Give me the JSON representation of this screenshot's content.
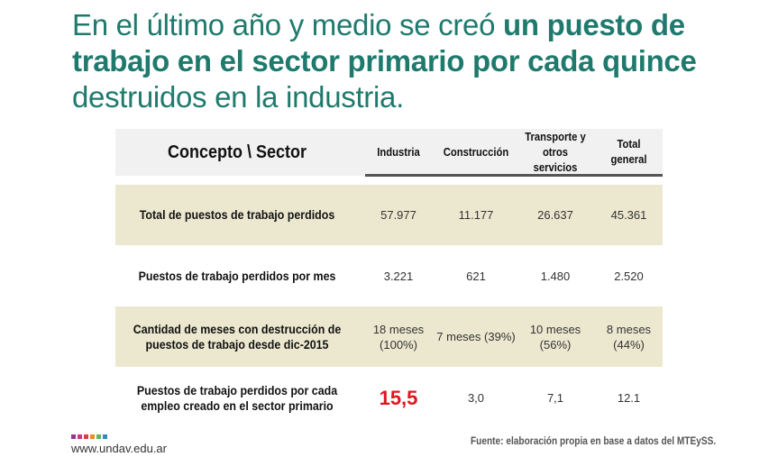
{
  "title": {
    "part1": "En el último año y medio se creó ",
    "bold": "un puesto de trabajo en el sector primario por cada quince",
    "part2": " destruidos en la industria."
  },
  "table": {
    "header": {
      "concept": "Concepto \\ Sector",
      "cols": [
        "Industria",
        "Construcción",
        "Transporte y otros servicios",
        "Total general"
      ]
    },
    "rows": [
      {
        "label": "Total de puestos de trabajo perdidos",
        "values": [
          "57.977",
          "11.177",
          "26.637",
          "45.361"
        ]
      },
      {
        "label": "Puestos de trabajo perdidos por mes",
        "values": [
          "3.221",
          "621",
          "1.480",
          "2.520"
        ]
      },
      {
        "label": "Cantidad de meses con destrucción de puestos de trabajo desde dic-2015",
        "values": [
          "18 meses (100%)",
          "7 meses (39%)",
          "10 meses (56%)",
          "8 meses (44%)"
        ]
      },
      {
        "label": "Puestos de trabajo perdidos por cada empleo creado en el sector primario",
        "values": [
          "15,5",
          "3,0",
          "7,1",
          "12.1"
        ]
      }
    ]
  },
  "footer": {
    "url": "www.undav.edu.ar",
    "source": "Fuente: elaboración propia en base a datos del MTEySS.",
    "logo_colors": [
      "#8e3a8e",
      "#d63384",
      "#e23b3b",
      "#f08a24",
      "#5cb85c",
      "#2a8fbd"
    ]
  },
  "colors": {
    "title": "#1f7a6d",
    "highlight": "#e0161e",
    "row_beige": "#ece8cf"
  }
}
